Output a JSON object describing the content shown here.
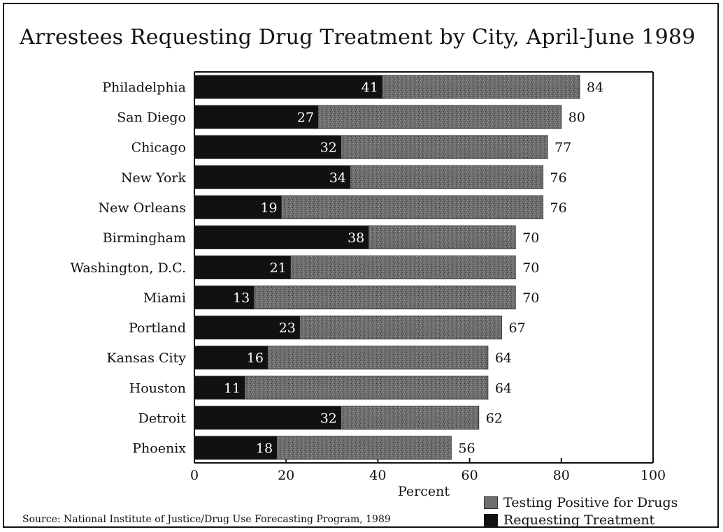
{
  "chart_data": {
    "type": "bar",
    "orientation": "horizontal",
    "stacked": false,
    "overlaid": true,
    "title": "Arrestees Requesting Drug Treatment by City, April-June 1989",
    "xlabel": "Percent",
    "ylabel": "",
    "xlim": [
      0,
      100
    ],
    "x_ticks": [
      "0",
      "20",
      "40",
      "60",
      "80",
      "100"
    ],
    "grid": false,
    "legend_position": "bottom-right",
    "categories": [
      "Philadelphia",
      "San Diego",
      "Chicago",
      "New York",
      "New Orleans",
      "Birmingham",
      "Washington, D.C.",
      "Miami",
      "Portland",
      "Kansas City",
      "Houston",
      "Detroit",
      "Phoenix"
    ],
    "series": [
      {
        "name": "Testing Positive for Drugs",
        "color": "#6f6f6f",
        "values": [
          84,
          80,
          77,
          76,
          76,
          70,
          70,
          70,
          67,
          64,
          64,
          62,
          56
        ]
      },
      {
        "name": "Requesting Treatment",
        "color": "#111111",
        "values": [
          41,
          27,
          32,
          34,
          19,
          38,
          21,
          13,
          23,
          16,
          11,
          32,
          18
        ]
      }
    ],
    "source": "Source: National Institute of Justice/Drug Use Forecasting Program, 1989"
  }
}
